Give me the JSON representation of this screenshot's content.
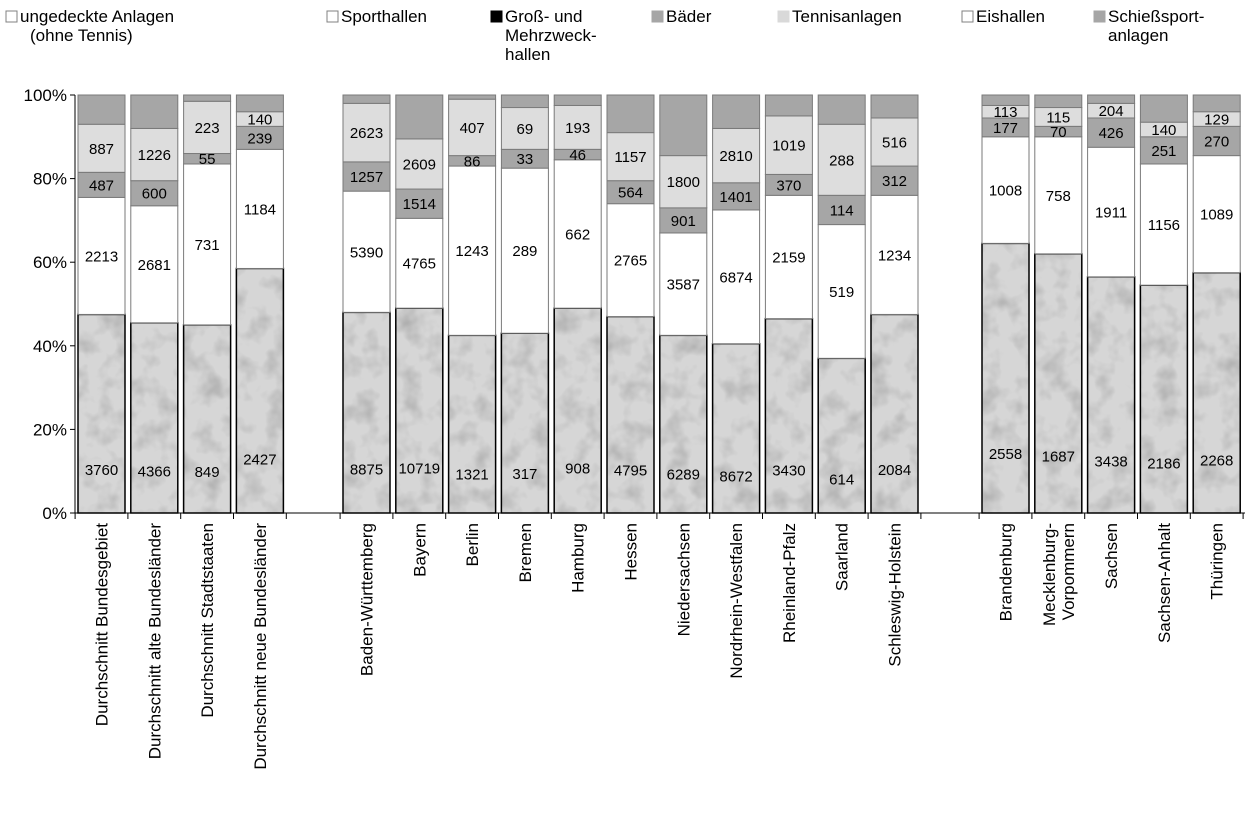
{
  "chart_data": {
    "type": "bar",
    "stacking": "percent",
    "ylim": [
      0,
      100
    ],
    "y_ticks": [
      "0%",
      "20%",
      "40%",
      "60%",
      "80%",
      "100%"
    ],
    "grid": false,
    "legend_position": "top",
    "legend": [
      {
        "lines": [
          "ungedeckte Anlagen",
          "(ohne Tennis)"
        ],
        "color": "#ffffff",
        "border": "#808080"
      },
      {
        "lines": [
          "Sporthallen"
        ],
        "color": "#ffffff",
        "border": "#808080"
      },
      {
        "lines": [
          "Groß- und",
          "Mehrzweck-",
          "hallen"
        ],
        "color": "#000000",
        "border": "#000000"
      },
      {
        "lines": [
          "Bäder"
        ],
        "color": "#a6a6a6",
        "border": "#a6a6a6"
      },
      {
        "lines": [
          "Tennisanlagen"
        ],
        "color": "#d9d9d9",
        "border": "#d9d9d9"
      },
      {
        "lines": [
          "Eishallen"
        ],
        "color": "#ffffff",
        "border": "#808080"
      },
      {
        "lines": [
          "Schießsport-",
          "anlagen"
        ],
        "color": "#a6a6a6",
        "border": "#a6a6a6"
      }
    ],
    "segments": [
      {
        "key": "ungedeckt",
        "color": "#d6d6d6",
        "textured": true
      },
      {
        "key": "sporthallen",
        "color": "#ffffff"
      },
      {
        "key": "baeder",
        "color": "#a6a6a6"
      },
      {
        "key": "tennis",
        "color": "#dddddd"
      },
      {
        "key": "schiess",
        "color": "#a6a6a6"
      }
    ],
    "bars": [
      {
        "lines": [
          "Durchschnitt Bundesgebiet"
        ],
        "group": 0,
        "values": [
          3760,
          2213,
          487,
          887,
          null
        ],
        "pct": [
          47.5,
          28,
          6,
          11.5,
          7
        ]
      },
      {
        "lines": [
          "Durchschnitt alte Bundesländer"
        ],
        "group": 0,
        "values": [
          4366,
          2681,
          600,
          1226,
          null
        ],
        "pct": [
          45.5,
          28,
          6,
          12.5,
          8
        ]
      },
      {
        "lines": [
          "Durchschnitt Stadtstaaten"
        ],
        "group": 0,
        "values": [
          849,
          731,
          55,
          223,
          null
        ],
        "pct": [
          45,
          38.5,
          2.5,
          12.5,
          1.5
        ]
      },
      {
        "lines": [
          "Durchschnitt neue Bundesländer"
        ],
        "group": 0,
        "values": [
          2427,
          1184,
          239,
          140,
          null
        ],
        "pct": [
          58.5,
          28.5,
          5.5,
          3.5,
          4
        ]
      },
      {
        "lines": [
          "Baden-Württemberg"
        ],
        "group": 1,
        "values": [
          8875,
          5390,
          1257,
          2623,
          null
        ],
        "pct": [
          48,
          29,
          7,
          14,
          2
        ]
      },
      {
        "lines": [
          "Bayern"
        ],
        "group": 1,
        "values": [
          10719,
          4765,
          1514,
          2609,
          null
        ],
        "pct": [
          49,
          21.5,
          7,
          12,
          10.5
        ]
      },
      {
        "lines": [
          "Berlin"
        ],
        "group": 1,
        "values": [
          1321,
          1243,
          86,
          407,
          null
        ],
        "pct": [
          42.5,
          40.5,
          2.5,
          13.5,
          1
        ]
      },
      {
        "lines": [
          "Bremen"
        ],
        "group": 1,
        "values": [
          317,
          289,
          33,
          69,
          null
        ],
        "pct": [
          43,
          39.5,
          4.5,
          10,
          3
        ]
      },
      {
        "lines": [
          "Hamburg"
        ],
        "group": 1,
        "values": [
          908,
          662,
          46,
          193,
          null
        ],
        "pct": [
          49,
          35.5,
          2.5,
          10.5,
          2.5
        ]
      },
      {
        "lines": [
          "Hessen"
        ],
        "group": 1,
        "values": [
          4795,
          2765,
          564,
          1157,
          null
        ],
        "pct": [
          47,
          27,
          5.5,
          11.5,
          9
        ]
      },
      {
        "lines": [
          "Niedersachsen"
        ],
        "group": 1,
        "values": [
          6289,
          3587,
          901,
          1800,
          null
        ],
        "pct": [
          42.5,
          24.5,
          6,
          12.5,
          14.5
        ]
      },
      {
        "lines": [
          "Nordrhein-Westfalen"
        ],
        "group": 1,
        "values": [
          8672,
          6874,
          1401,
          2810,
          null
        ],
        "pct": [
          40.5,
          32,
          6.5,
          13,
          8
        ]
      },
      {
        "lines": [
          "Rheinland-Pfalz"
        ],
        "group": 1,
        "values": [
          3430,
          2159,
          370,
          1019,
          null
        ],
        "pct": [
          46.5,
          29.5,
          5,
          14,
          5
        ]
      },
      {
        "lines": [
          "Saarland"
        ],
        "group": 1,
        "values": [
          614,
          519,
          114,
          288,
          null
        ],
        "pct": [
          37,
          32,
          7,
          17,
          7
        ]
      },
      {
        "lines": [
          "Schleswig-Holstein"
        ],
        "group": 1,
        "values": [
          2084,
          1234,
          312,
          516,
          null
        ],
        "pct": [
          47.5,
          28.5,
          7,
          11.5,
          5.5
        ]
      },
      {
        "lines": [
          "Brandenburg"
        ],
        "group": 2,
        "values": [
          2558,
          1008,
          177,
          113,
          null
        ],
        "pct": [
          64.5,
          25.5,
          4.5,
          3,
          2.5
        ]
      },
      {
        "lines": [
          "Mecklenburg-",
          "Vorpommern"
        ],
        "group": 2,
        "values": [
          1687,
          758,
          70,
          115,
          null
        ],
        "pct": [
          62,
          28,
          2.5,
          4.5,
          3
        ]
      },
      {
        "lines": [
          "Sachsen"
        ],
        "group": 2,
        "values": [
          3438,
          1911,
          426,
          204,
          null
        ],
        "pct": [
          56.5,
          31,
          7,
          3.5,
          2
        ]
      },
      {
        "lines": [
          "Sachsen-Anhalt"
        ],
        "group": 2,
        "values": [
          2186,
          1156,
          251,
          140,
          null
        ],
        "pct": [
          54.5,
          29,
          6.5,
          3.5,
          6.5
        ]
      },
      {
        "lines": [
          "Thüringen"
        ],
        "group": 2,
        "values": [
          2268,
          1089,
          270,
          129,
          null
        ],
        "pct": [
          57.5,
          28,
          7,
          3.5,
          4
        ]
      }
    ]
  }
}
